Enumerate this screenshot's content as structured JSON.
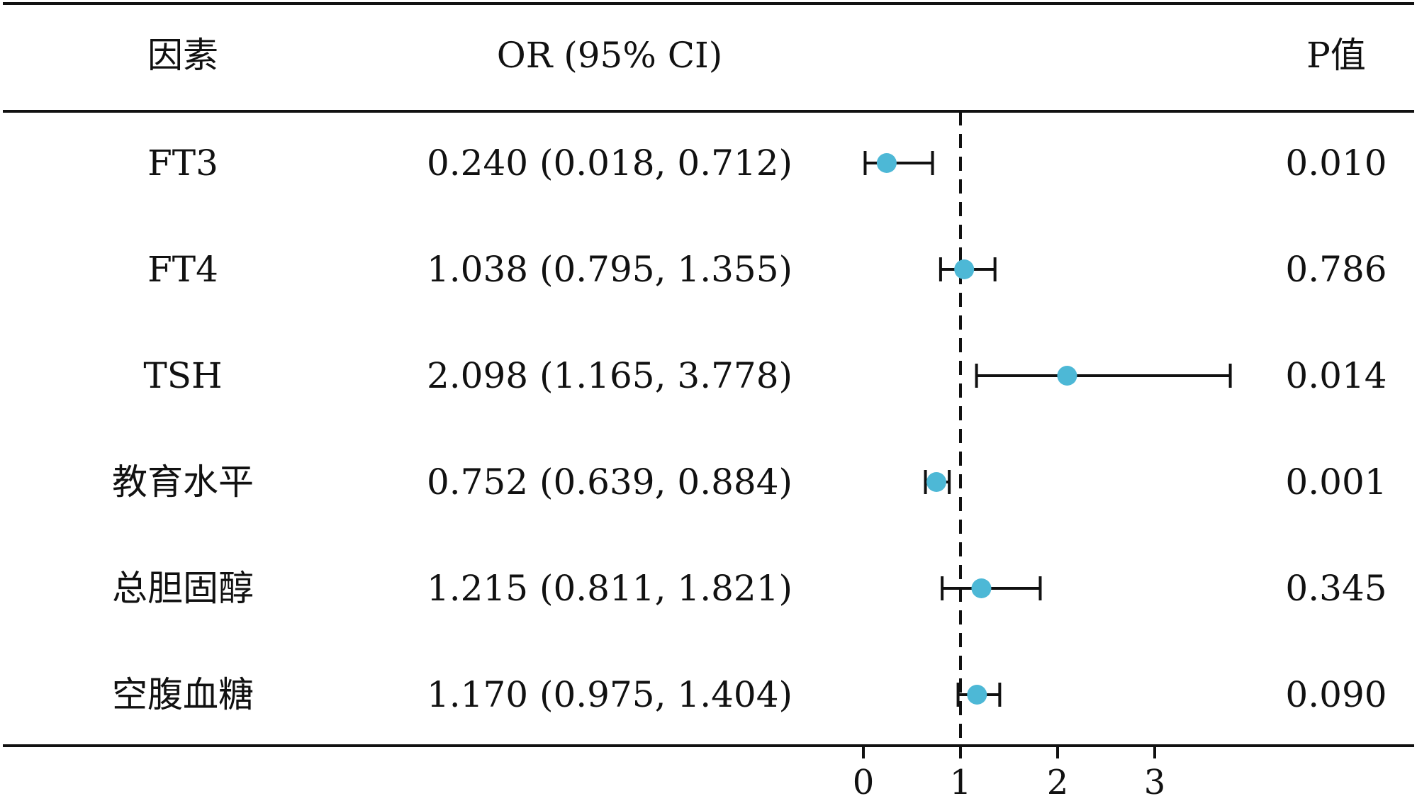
{
  "chart_data": {
    "type": "forest",
    "columns": {
      "factor": "因素",
      "or_ci": "OR (95% CI)",
      "p": "P值"
    },
    "reference_line": 1,
    "x_ticks": [
      0,
      1,
      2,
      3
    ],
    "x_range": [
      0,
      3.9
    ],
    "point_color": "#4db8d6",
    "rows": [
      {
        "factor": "FT3",
        "or": 0.24,
        "lower": 0.018,
        "upper": 0.712,
        "or_ci_text": "0.240 (0.018, 0.712)",
        "p_text": "0.010"
      },
      {
        "factor": "FT4",
        "or": 1.038,
        "lower": 0.795,
        "upper": 1.355,
        "or_ci_text": "1.038 (0.795, 1.355)",
        "p_text": "0.786"
      },
      {
        "factor": "TSH",
        "or": 2.098,
        "lower": 1.165,
        "upper": 3.778,
        "or_ci_text": "2.098 (1.165, 3.778)",
        "p_text": "0.014"
      },
      {
        "factor": "教育水平",
        "or": 0.752,
        "lower": 0.639,
        "upper": 0.884,
        "or_ci_text": "0.752 (0.639, 0.884)",
        "p_text": "0.001"
      },
      {
        "factor": "总胆固醇",
        "or": 1.215,
        "lower": 0.811,
        "upper": 1.821,
        "or_ci_text": "1.215 (0.811, 1.821)",
        "p_text": "0.345"
      },
      {
        "factor": "空腹血糖",
        "or": 1.17,
        "lower": 0.975,
        "upper": 1.404,
        "or_ci_text": "1.170 (0.975, 1.404)",
        "p_text": "0.090"
      }
    ]
  }
}
